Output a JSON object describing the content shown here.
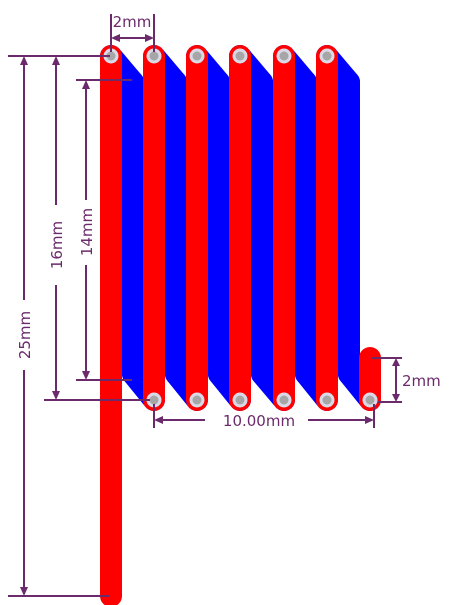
{
  "colors": {
    "top_layer": "#ff0000",
    "bottom_layer": "#0000ff",
    "via_ring": "#d9d9e8",
    "via_hole": "#a6a6a6",
    "dimension": "#6b2a6b"
  },
  "dimensions": {
    "pitch_label": "2mm",
    "coil_height_label": "16mm",
    "inner_height_label": "14mm",
    "total_length_label": "25mm",
    "coil_width_label": "10.00mm",
    "tail_label": "2mm"
  }
}
